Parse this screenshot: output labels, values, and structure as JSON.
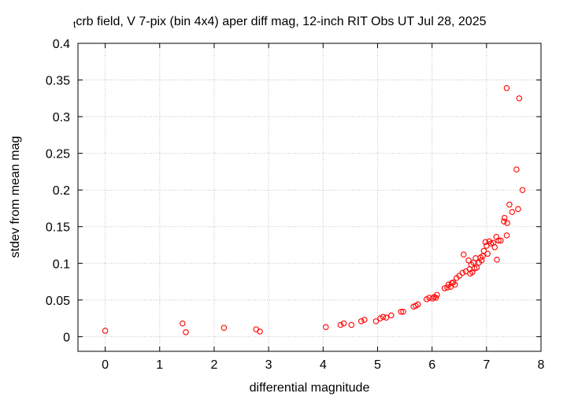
{
  "chart_data": {
    "type": "scatter",
    "title_prefix": "t",
    "title": "crb field, V 7-pix (bin 4x4) aper diff mag,  12-inch RIT Obs UT Jul 28, 2025",
    "xlabel": "differential magnitude",
    "ylabel": "stdev from mean mag",
    "xlim": [
      -0.5,
      8
    ],
    "ylim": [
      -0.02,
      0.4
    ],
    "xticks": [
      0,
      1,
      2,
      3,
      4,
      5,
      6,
      7,
      8
    ],
    "xtick_labels": [
      "0",
      "1",
      "2",
      "3",
      "4",
      "5",
      "6",
      "7",
      "8"
    ],
    "yticks": [
      0,
      0.05,
      0.1,
      0.15,
      0.2,
      0.25,
      0.3,
      0.35,
      0.4
    ],
    "ytick_labels": [
      "0",
      "0.05",
      "0.1",
      "0.15",
      "0.2",
      "0.25",
      "0.3",
      "0.35",
      "0.4"
    ],
    "grid": true,
    "marker_color": "#ff0000",
    "marker": "open-circle",
    "points": [
      [
        0.0,
        0.008
      ],
      [
        1.42,
        0.018
      ],
      [
        1.48,
        0.006
      ],
      [
        2.18,
        0.012
      ],
      [
        2.77,
        0.01
      ],
      [
        2.84,
        0.007
      ],
      [
        4.05,
        0.013
      ],
      [
        4.32,
        0.016
      ],
      [
        4.38,
        0.018
      ],
      [
        4.52,
        0.016
      ],
      [
        4.7,
        0.021
      ],
      [
        4.76,
        0.023
      ],
      [
        4.97,
        0.021
      ],
      [
        5.05,
        0.025
      ],
      [
        5.1,
        0.027
      ],
      [
        5.16,
        0.026
      ],
      [
        5.25,
        0.029
      ],
      [
        5.43,
        0.034
      ],
      [
        5.47,
        0.034
      ],
      [
        5.66,
        0.041
      ],
      [
        5.7,
        0.042
      ],
      [
        5.74,
        0.044
      ],
      [
        5.9,
        0.051
      ],
      [
        5.95,
        0.053
      ],
      [
        6.01,
        0.052
      ],
      [
        6.04,
        0.054
      ],
      [
        6.07,
        0.053
      ],
      [
        6.09,
        0.057
      ],
      [
        6.23,
        0.066
      ],
      [
        6.28,
        0.067
      ],
      [
        6.3,
        0.071
      ],
      [
        6.34,
        0.068
      ],
      [
        6.36,
        0.073
      ],
      [
        6.39,
        0.074
      ],
      [
        6.42,
        0.071
      ],
      [
        6.45,
        0.08
      ],
      [
        6.5,
        0.083
      ],
      [
        6.56,
        0.087
      ],
      [
        6.58,
        0.112
      ],
      [
        6.62,
        0.089
      ],
      [
        6.67,
        0.104
      ],
      [
        6.69,
        0.092
      ],
      [
        6.7,
        0.086
      ],
      [
        6.72,
        0.098
      ],
      [
        6.74,
        0.088
      ],
      [
        6.76,
        0.101
      ],
      [
        6.78,
        0.093
      ],
      [
        6.8,
        0.107
      ],
      [
        6.82,
        0.094
      ],
      [
        6.86,
        0.101
      ],
      [
        6.89,
        0.108
      ],
      [
        6.91,
        0.104
      ],
      [
        6.93,
        0.11
      ],
      [
        6.95,
        0.117
      ],
      [
        6.98,
        0.129
      ],
      [
        7.0,
        0.124
      ],
      [
        7.02,
        0.113
      ],
      [
        7.05,
        0.13
      ],
      [
        7.08,
        0.127
      ],
      [
        7.12,
        0.128
      ],
      [
        7.15,
        0.122
      ],
      [
        7.18,
        0.136
      ],
      [
        7.19,
        0.105
      ],
      [
        7.22,
        0.131
      ],
      [
        7.26,
        0.131
      ],
      [
        7.32,
        0.157
      ],
      [
        7.33,
        0.162
      ],
      [
        7.37,
        0.138
      ],
      [
        7.38,
        0.155
      ],
      [
        7.37,
        0.339
      ],
      [
        7.42,
        0.18
      ],
      [
        7.47,
        0.17
      ],
      [
        7.55,
        0.228
      ],
      [
        7.58,
        0.174
      ],
      [
        7.6,
        0.325
      ],
      [
        7.66,
        0.2
      ]
    ]
  }
}
